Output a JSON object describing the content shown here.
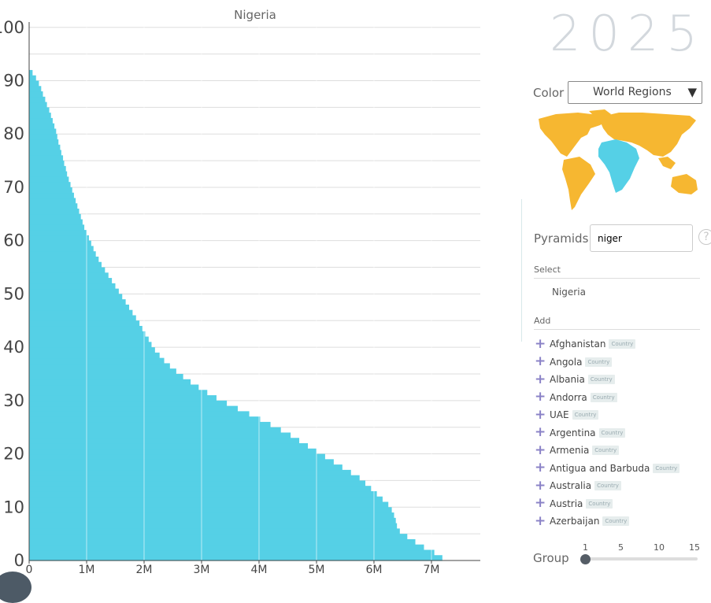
{
  "chart_data": {
    "type": "bar",
    "orientation": "horizontal",
    "title": "Nigeria",
    "yticks": [
      "0",
      "10",
      "20",
      "30",
      "40",
      "50",
      "60",
      "70",
      "80",
      "90",
      "100"
    ],
    "xticks": [
      "0",
      "1M",
      "2M",
      "3M",
      "4M",
      "5M",
      "6M",
      "7M"
    ],
    "ylim": [
      0,
      101
    ],
    "xlim": [
      0,
      7.85
    ],
    "x_unit": "M",
    "grid": true,
    "bar_color": "#55d0e6",
    "age_step": 1,
    "values_millions": [
      7.19,
      7.05,
      6.87,
      6.72,
      6.58,
      6.45,
      6.4,
      6.38,
      6.35,
      6.31,
      6.25,
      6.15,
      6.05,
      5.95,
      5.85,
      5.75,
      5.6,
      5.45,
      5.3,
      5.15,
      5.0,
      4.85,
      4.7,
      4.55,
      4.38,
      4.2,
      4.02,
      3.83,
      3.63,
      3.44,
      3.26,
      3.1,
      2.95,
      2.81,
      2.68,
      2.56,
      2.45,
      2.35,
      2.27,
      2.19,
      2.13,
      2.08,
      2.02,
      1.97,
      1.92,
      1.86,
      1.8,
      1.74,
      1.68,
      1.62,
      1.56,
      1.5,
      1.44,
      1.38,
      1.32,
      1.26,
      1.21,
      1.16,
      1.12,
      1.08,
      1.04,
      1.0,
      0.96,
      0.93,
      0.9,
      0.87,
      0.84,
      0.81,
      0.78,
      0.75,
      0.72,
      0.69,
      0.66,
      0.64,
      0.61,
      0.59,
      0.56,
      0.54,
      0.51,
      0.49,
      0.47,
      0.44,
      0.41,
      0.38,
      0.35,
      0.31,
      0.28,
      0.24,
      0.21,
      0.17,
      0.12,
      0.06
    ]
  },
  "year": "2025",
  "color_control": {
    "label": "Color",
    "value": "World Regions",
    "arrow": "▼"
  },
  "map": {
    "highlight_color": "#55d0e6",
    "base_color": "#f6b731"
  },
  "pyramids": {
    "label": "Pyramids",
    "search_value": "niger",
    "help": "?"
  },
  "select_section": {
    "label": "Select",
    "selected": "Nigeria"
  },
  "add_section": {
    "label": "Add",
    "items": [
      {
        "name": "Afghanistan",
        "tag": "Country"
      },
      {
        "name": "Angola",
        "tag": "Country"
      },
      {
        "name": "Albania",
        "tag": "Country"
      },
      {
        "name": "Andorra",
        "tag": "Country"
      },
      {
        "name": "UAE",
        "tag": "Country"
      },
      {
        "name": "Argentina",
        "tag": "Country"
      },
      {
        "name": "Armenia",
        "tag": "Country"
      },
      {
        "name": "Antigua and Barbuda",
        "tag": "Country"
      },
      {
        "name": "Australia",
        "tag": "Country"
      },
      {
        "name": "Austria",
        "tag": "Country"
      },
      {
        "name": "Azerbaijan",
        "tag": "Country"
      }
    ],
    "plus_icon": "plus-icon"
  },
  "group": {
    "label": "Group",
    "ticks": [
      "1",
      "5",
      "10",
      "15"
    ],
    "value": 1
  }
}
